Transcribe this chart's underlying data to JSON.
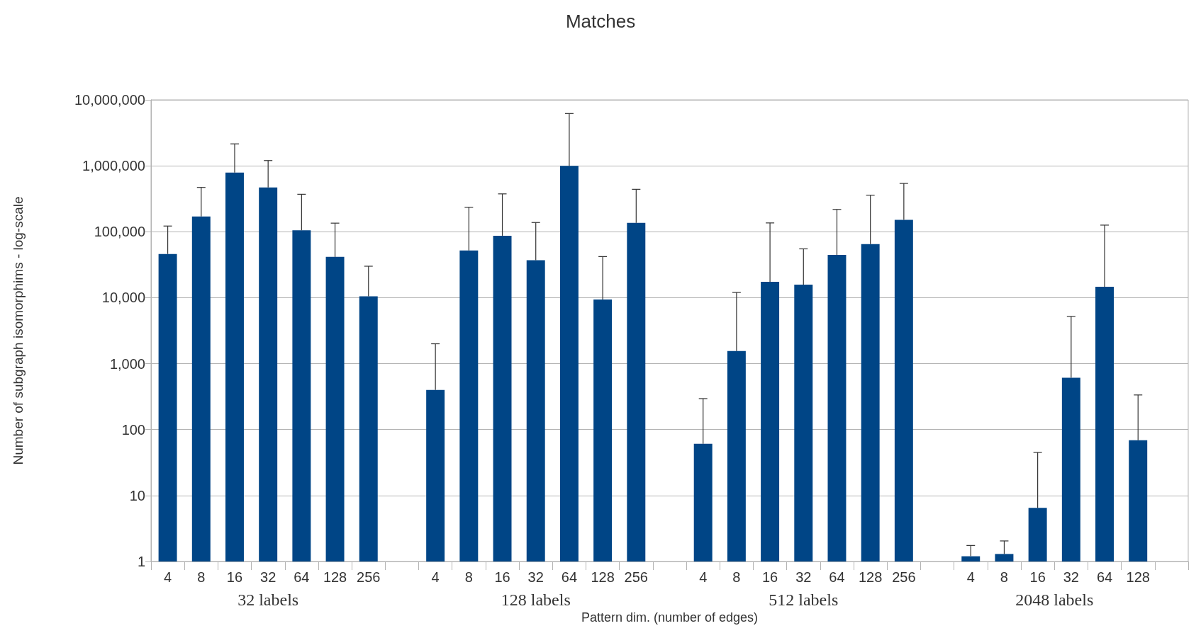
{
  "chart_data": {
    "type": "bar",
    "title": "Matches",
    "xlabel": "Pattern dim. (number of edges)",
    "ylabel": "Number of subgraph isomorphims - log-scale",
    "categories": [
      "4",
      "8",
      "16",
      "32",
      "64",
      "128",
      "256",
      null,
      "4",
      "8",
      "16",
      "32",
      "64",
      "128",
      "256",
      null,
      "4",
      "8",
      "16",
      "32",
      "64",
      "128",
      "256",
      null,
      "4",
      "8",
      "16",
      "32",
      "64",
      "128",
      null
    ],
    "values": [
      46000,
      170000,
      790000,
      470000,
      105000,
      41500,
      10500,
      null,
      400,
      52000,
      87000,
      37000,
      1000000,
      9400,
      136000,
      null,
      61,
      1550,
      17400,
      15800,
      44500,
      65000,
      151000,
      null,
      1.2,
      1.3,
      6.5,
      610,
      14600,
      69,
      null
    ],
    "errors": [
      [
        46000,
        122000
      ],
      [
        170000,
        470000
      ],
      [
        790000,
        2150000
      ],
      [
        470000,
        1200000
      ],
      [
        105000,
        370000
      ],
      [
        41500,
        135000
      ],
      [
        10500,
        30000
      ],
      null,
      [
        400,
        2000
      ],
      [
        52000,
        235000
      ],
      [
        87000,
        375000
      ],
      [
        37000,
        138000
      ],
      [
        1000000,
        6200000
      ],
      [
        9400,
        42000
      ],
      [
        136000,
        440000
      ],
      null,
      [
        61,
        295
      ],
      [
        1550,
        12000
      ],
      [
        17400,
        136000
      ],
      [
        15800,
        55000
      ],
      [
        44500,
        218000
      ],
      [
        65000,
        358000
      ],
      [
        151000,
        540000
      ],
      null,
      [
        1.2,
        1.75
      ],
      [
        1.3,
        2.05
      ],
      [
        6.5,
        45
      ],
      [
        610,
        5200
      ],
      [
        14600,
        126000
      ],
      [
        69,
        335
      ],
      null
    ],
    "color": "#004586",
    "annotations": [
      "32 labels",
      "128 labels",
      "512 labels",
      "2048 labels"
    ],
    "log": true,
    "grid": "y",
    "ylim": [
      1,
      10000000
    ],
    "yticks": [
      {
        "value": 1,
        "label": "1"
      },
      {
        "value": 10,
        "label": "10"
      },
      {
        "value": 100,
        "label": "100"
      },
      {
        "value": 1000,
        "label": "1,000"
      },
      {
        "value": 10000,
        "label": "10,000"
      },
      {
        "value": 100000,
        "label": "100,000"
      },
      {
        "value": 1000000,
        "label": "1,000,000"
      },
      {
        "value": 10000000,
        "label": "10,000,000"
      }
    ]
  }
}
